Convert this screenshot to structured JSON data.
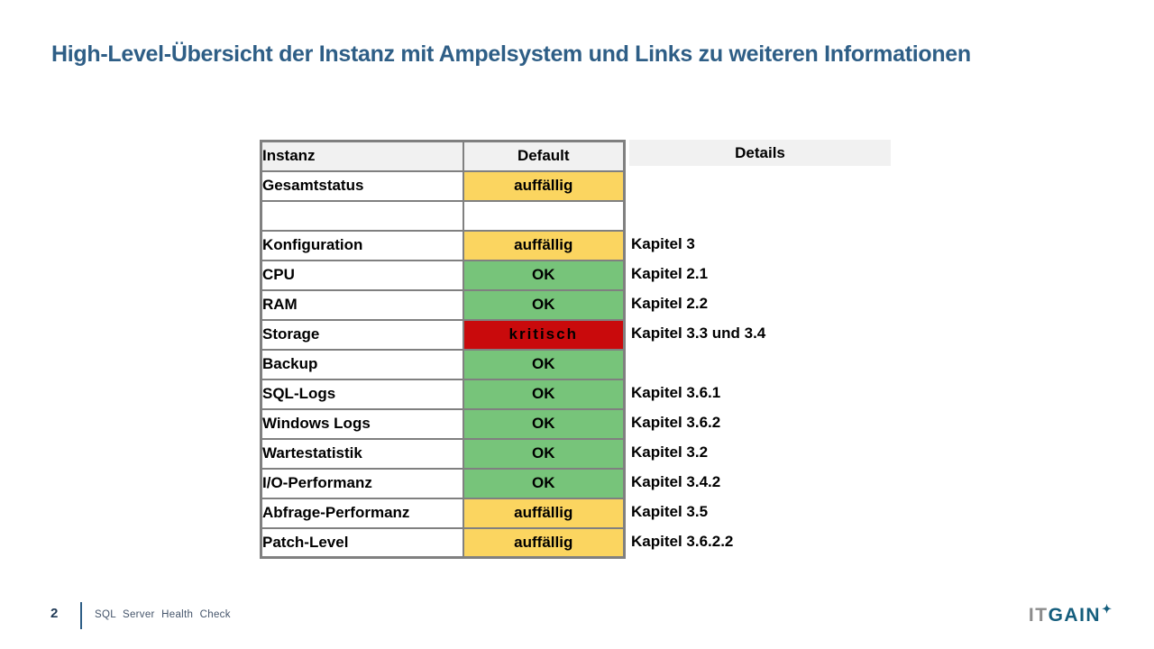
{
  "slide": {
    "title": "High-Level-Übersicht der Instanz mit Ampelsystem und Links zu weiteren Informationen"
  },
  "table": {
    "headers": {
      "instanz": "Instanz",
      "default": "Default",
      "details": "Details"
    },
    "rows": [
      {
        "name": "Gesamtstatus",
        "status": "auffällig",
        "status_type": "warning",
        "detail": ""
      },
      {
        "name": "",
        "status": "",
        "status_type": "none",
        "detail": ""
      },
      {
        "name": "Konfiguration",
        "status": "auffällig",
        "status_type": "warning",
        "detail": "Kapitel 3"
      },
      {
        "name": "CPU",
        "status": "OK",
        "status_type": "ok",
        "detail": "Kapitel 2.1"
      },
      {
        "name": "RAM",
        "status": "OK",
        "status_type": "ok",
        "detail": "Kapitel 2.2"
      },
      {
        "name": "Storage",
        "status": "kritisch",
        "status_type": "critical",
        "detail": "Kapitel 3.3 und 3.4"
      },
      {
        "name": "Backup",
        "status": "OK",
        "status_type": "ok",
        "detail": ""
      },
      {
        "name": "SQL-Logs",
        "status": "OK",
        "status_type": "ok",
        "detail": "Kapitel 3.6.1"
      },
      {
        "name": "Windows Logs",
        "status": "OK",
        "status_type": "ok",
        "detail": "Kapitel 3.6.2"
      },
      {
        "name": "Wartestatistik",
        "status": "OK",
        "status_type": "ok",
        "detail": "Kapitel 3.2"
      },
      {
        "name": "I/O-Performanz",
        "status": "OK",
        "status_type": "ok",
        "detail": "Kapitel 3.4.2"
      },
      {
        "name": "Abfrage-Performanz",
        "status": "auffällig",
        "status_type": "warning",
        "detail": "Kapitel 3.5"
      },
      {
        "name": "Patch-Level",
        "status": "auffällig",
        "status_type": "warning",
        "detail": "Kapitel 3.6.2.2"
      }
    ]
  },
  "footer": {
    "page_number": "2",
    "label": "SQL Server Health Check"
  },
  "logo": {
    "text_gray": "IT",
    "text_blue": "GAIN",
    "star": "✦"
  },
  "colors": {
    "title": "#2E5E86",
    "status_ok": "#77C47A",
    "status_warning": "#FBD560",
    "status_critical": "#C90A0C",
    "table_border": "#808080",
    "header_bg": "#F1F1F1",
    "footer_text": "#44546A",
    "page_number": "#203A56",
    "logo_gray": "#8C8C8C",
    "logo_blue": "#155E7D"
  }
}
